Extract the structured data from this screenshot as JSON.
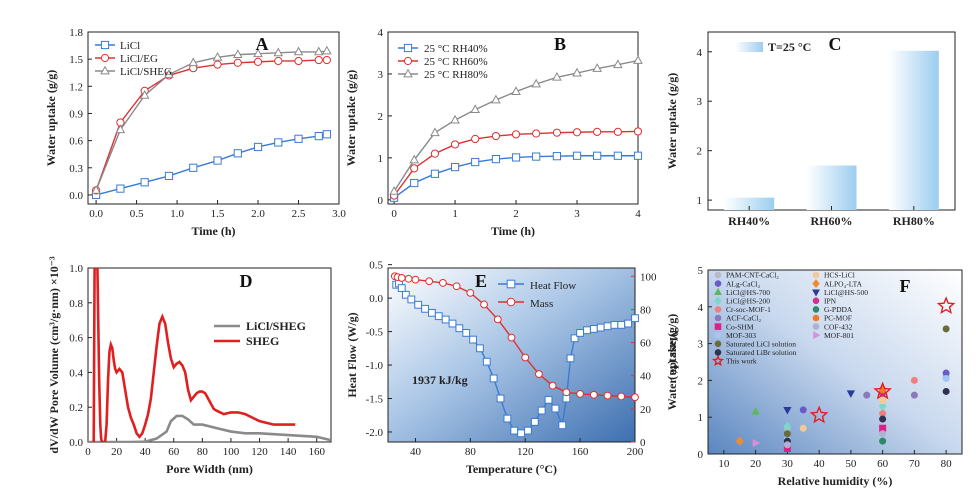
{
  "chart_data": [
    {
      "panel": "A",
      "type": "line",
      "xlabel": "Time (h)",
      "ylabel": "Water uptake (g/g)",
      "xlim": [
        -0.1,
        3.0
      ],
      "ylim": [
        -0.1,
        1.8
      ],
      "xticks": [
        0,
        0.5,
        1,
        1.5,
        2,
        2.5,
        3
      ],
      "yticks": [
        0,
        0.3,
        0.6,
        0.9,
        1.2,
        1.5,
        1.8
      ],
      "xtick_labels": [
        "0.0",
        "0.5",
        "1.0",
        "1.5",
        "2.0",
        "2.5",
        "3.0"
      ],
      "ytick_labels": [
        "0.0",
        "0.3",
        "0.6",
        "0.9",
        "1.2",
        "1.5",
        "1.8"
      ],
      "legend_position": "top-left",
      "series": [
        {
          "name": "LiCl",
          "color": "#3a7bd5",
          "marker": "square",
          "x": [
            0,
            0.3,
            0.6,
            0.9,
            1.2,
            1.5,
            1.75,
            2.0,
            2.25,
            2.5,
            2.75,
            2.85
          ],
          "y": [
            0.0,
            0.07,
            0.14,
            0.21,
            0.3,
            0.38,
            0.46,
            0.53,
            0.58,
            0.62,
            0.65,
            0.67
          ]
        },
        {
          "name": "LiCl/EG",
          "color": "#e03030",
          "marker": "circle",
          "x": [
            0,
            0.3,
            0.6,
            0.9,
            1.2,
            1.5,
            1.75,
            2.0,
            2.25,
            2.5,
            2.75,
            2.85
          ],
          "y": [
            0.05,
            0.8,
            1.15,
            1.32,
            1.4,
            1.44,
            1.46,
            1.47,
            1.48,
            1.48,
            1.49,
            1.49
          ]
        },
        {
          "name": "LiCl/SHEG",
          "color": "#8a8a8a",
          "marker": "triangle",
          "x": [
            0,
            0.3,
            0.6,
            0.9,
            1.2,
            1.5,
            1.75,
            2.0,
            2.25,
            2.5,
            2.75,
            2.85
          ],
          "y": [
            0.05,
            0.72,
            1.1,
            1.33,
            1.46,
            1.52,
            1.55,
            1.56,
            1.57,
            1.58,
            1.58,
            1.59
          ]
        }
      ]
    },
    {
      "panel": "B",
      "type": "line",
      "xlabel": "Time (h)",
      "ylabel": "Water uptake (g/g)",
      "xlim": [
        -0.1,
        4.0
      ],
      "ylim": [
        -0.1,
        4.0
      ],
      "xticks": [
        0,
        1,
        2,
        3,
        4
      ],
      "yticks": [
        0,
        1,
        2,
        3,
        4
      ],
      "xtick_labels": [
        "0",
        "1",
        "2",
        "3",
        "4"
      ],
      "ytick_labels": [
        "0",
        "1",
        "2",
        "3",
        "4"
      ],
      "legend_position": "top-left",
      "series": [
        {
          "name": "25 °C RH40%",
          "color": "#3a7bd5",
          "marker": "square",
          "x": [
            0,
            0.33,
            0.67,
            1.0,
            1.33,
            1.67,
            2.0,
            2.33,
            2.67,
            3.0,
            3.33,
            3.67,
            4.0
          ],
          "y": [
            0.05,
            0.4,
            0.62,
            0.78,
            0.9,
            0.97,
            1.01,
            1.03,
            1.04,
            1.05,
            1.05,
            1.05,
            1.05
          ]
        },
        {
          "name": "25 °C RH60%",
          "color": "#e03030",
          "marker": "circle",
          "x": [
            0,
            0.33,
            0.67,
            1.0,
            1.33,
            1.67,
            2.0,
            2.33,
            2.67,
            3.0,
            3.33,
            3.67,
            4.0
          ],
          "y": [
            0.1,
            0.75,
            1.1,
            1.32,
            1.45,
            1.52,
            1.56,
            1.58,
            1.6,
            1.61,
            1.62,
            1.62,
            1.63
          ]
        },
        {
          "name": "25 °C RH80%",
          "color": "#8a8a8a",
          "marker": "triangle",
          "x": [
            0,
            0.33,
            0.67,
            1.0,
            1.33,
            1.67,
            2.0,
            2.33,
            2.67,
            3.0,
            3.33,
            3.67,
            4.0
          ],
          "y": [
            0.2,
            0.95,
            1.6,
            1.9,
            2.15,
            2.38,
            2.58,
            2.76,
            2.92,
            3.02,
            3.13,
            3.22,
            3.32
          ]
        }
      ]
    },
    {
      "panel": "C",
      "type": "bar",
      "ylabel": "Water uptake (g/g)",
      "categories": [
        "RH40%",
        "RH60%",
        "RH80%"
      ],
      "values": [
        1.05,
        1.7,
        4.02
      ],
      "ylim": [
        0.8,
        4.4
      ],
      "yticks": [
        1,
        2,
        3,
        4
      ],
      "ytick_labels": [
        "1",
        "2",
        "3",
        "4"
      ],
      "legend": "T=25 °C",
      "bar_color": "#9ccdf0"
    },
    {
      "panel": "D",
      "type": "line",
      "xlabel": "Pore Width (nm)",
      "ylabel": "dV/dW Pore Volume (cm³/g·nm) ×10⁻³",
      "xlim": [
        0,
        170
      ],
      "ylim": [
        0,
        1.0
      ],
      "xticks": [
        0,
        20,
        40,
        60,
        80,
        100,
        120,
        140,
        160
      ],
      "yticks": [
        0,
        0.2,
        0.4,
        0.6,
        0.8,
        1.0
      ],
      "xtick_labels": [
        "0",
        "20",
        "40",
        "60",
        "80",
        "100",
        "120",
        "140",
        "160"
      ],
      "ytick_labels": [
        "0.0",
        "0.2",
        "0.4",
        "0.6",
        "0.8",
        "1.0"
      ],
      "legend_position": "right",
      "series": [
        {
          "name": "LiCl/SHEG",
          "color": "#8a8a8a",
          "x": [
            0,
            30,
            40,
            48,
            55,
            58,
            62,
            66,
            70,
            74,
            80,
            90,
            100,
            110,
            120,
            130,
            140,
            150,
            160,
            170
          ],
          "y": [
            0,
            0,
            0.002,
            0.02,
            0.06,
            0.12,
            0.15,
            0.15,
            0.13,
            0.1,
            0.1,
            0.08,
            0.06,
            0.05,
            0.05,
            0.045,
            0.04,
            0.035,
            0.03,
            0.01
          ]
        },
        {
          "name": "SHEG",
          "color": "#e02020",
          "x": [
            4,
            4.6,
            5.2,
            5.8,
            6.6,
            7.8,
            8.6,
            9.2,
            9.8,
            11,
            12,
            13,
            14,
            15,
            16,
            17,
            18,
            19,
            20,
            22,
            24,
            26,
            28,
            30,
            32,
            34,
            36,
            38,
            40,
            42,
            44,
            46,
            48,
            50,
            52,
            54,
            56,
            58,
            60,
            62,
            64,
            66,
            68,
            70,
            72,
            74,
            76,
            78,
            80,
            82,
            84,
            86,
            88,
            90,
            95,
            100,
            105,
            110,
            115,
            120,
            125,
            130,
            135,
            140,
            145
          ],
          "y": [
            0,
            1.0,
            1.0,
            1.0,
            1.0,
            0.36,
            0.1,
            0.02,
            0,
            0,
            0,
            0.1,
            0.35,
            0.52,
            0.56,
            0.54,
            0.47,
            0.42,
            0.4,
            0.42,
            0.4,
            0.3,
            0.2,
            0.14,
            0.1,
            0.05,
            0.03,
            0.05,
            0.1,
            0.16,
            0.25,
            0.4,
            0.55,
            0.68,
            0.72,
            0.68,
            0.57,
            0.48,
            0.43,
            0.45,
            0.46,
            0.44,
            0.4,
            0.3,
            0.24,
            0.26,
            0.28,
            0.29,
            0.29,
            0.28,
            0.25,
            0.22,
            0.19,
            0.18,
            0.16,
            0.17,
            0.17,
            0.16,
            0.14,
            0.12,
            0.11,
            0.1,
            0.1,
            0.1,
            0.1
          ]
        }
      ]
    },
    {
      "panel": "E",
      "type": "line",
      "xlabel": "Temperature (°C)",
      "ylabel": "Heat Flow (W/g)",
      "ylabel_right": "Mass (%)",
      "xlim": [
        20,
        200
      ],
      "ylim": [
        -2.15,
        0.45
      ],
      "ylim_right": [
        0,
        105
      ],
      "xticks": [
        40,
        80,
        120,
        160,
        200
      ],
      "yticks": [
        0.5,
        0.0,
        -0.5,
        -1.0,
        -1.5,
        -2.0
      ],
      "yticks_right": [
        0,
        20,
        40,
        60,
        80,
        100
      ],
      "xtick_labels": [
        "40",
        "80",
        "120",
        "160",
        "200"
      ],
      "ytick_labels": [
        "0.5",
        "0.0",
        "-0.5",
        "-1.0",
        "-1.5",
        "-2.0"
      ],
      "ytick_labels_right": [
        "0",
        "20",
        "40",
        "60",
        "80",
        "100"
      ],
      "annotation": "1937 kJ/kg",
      "legend_position": "top-right",
      "series": [
        {
          "name": "Heat Flow",
          "color": "#3a7bd5",
          "marker": "square",
          "axis": "left",
          "x": [
            26,
            28,
            30,
            33,
            37,
            42,
            47,
            52,
            57,
            62,
            67,
            72,
            77,
            82,
            87,
            92,
            97,
            102,
            107,
            112,
            117,
            122,
            127,
            132,
            137,
            142,
            147,
            150,
            153,
            156,
            160,
            165,
            170,
            175,
            180,
            185,
            190,
            195,
            200
          ],
          "y": [
            0.2,
            0.22,
            0.15,
            0.05,
            -0.02,
            -0.1,
            -0.16,
            -0.22,
            -0.27,
            -0.32,
            -0.38,
            -0.45,
            -0.52,
            -0.62,
            -0.75,
            -0.95,
            -1.2,
            -1.5,
            -1.8,
            -1.98,
            -2.02,
            -1.98,
            -1.85,
            -1.68,
            -1.52,
            -1.65,
            -1.9,
            -1.5,
            -0.9,
            -0.6,
            -0.52,
            -0.48,
            -0.46,
            -0.44,
            -0.42,
            -0.4,
            -0.4,
            -0.38,
            -0.3
          ]
        },
        {
          "name": "Mass",
          "color": "#e03030",
          "marker": "circle",
          "axis": "right",
          "x": [
            25,
            27,
            30,
            35,
            40,
            50,
            60,
            70,
            80,
            90,
            100,
            110,
            120,
            130,
            140,
            150,
            160,
            170,
            180,
            190,
            200
          ],
          "y": [
            100,
            99.5,
            99,
            98.5,
            98,
            97,
            96,
            94,
            90,
            83,
            74,
            63,
            51,
            41,
            34,
            30,
            29,
            28.5,
            28,
            27.5,
            27
          ]
        }
      ]
    },
    {
      "panel": "F",
      "type": "scatter",
      "xlabel": "Relative humidity (%)",
      "ylabel": "Water uptake (g/g)",
      "xlim": [
        5,
        85
      ],
      "ylim": [
        0,
        5
      ],
      "xticks": [
        10,
        20,
        30,
        40,
        50,
        60,
        70,
        80
      ],
      "yticks": [
        0,
        1,
        2,
        3,
        4,
        5
      ],
      "xtick_labels": [
        "10",
        "20",
        "30",
        "40",
        "50",
        "60",
        "70",
        "80"
      ],
      "ytick_labels": [
        "0",
        "1",
        "2",
        "3",
        "4",
        "5"
      ],
      "legend_position": "top-left",
      "series": [
        {
          "name": "PAM-CNT-CaCl₂",
          "color": "#b8b8c8",
          "marker": "circle",
          "x": [
            30,
            60,
            80
          ],
          "y": [
            0.7,
            1.65,
            2.1
          ]
        },
        {
          "name": "ALg-CaCl₂",
          "color": "#6a5ac8",
          "marker": "circle",
          "x": [
            35,
            60,
            80
          ],
          "y": [
            1.2,
            1.7,
            2.2
          ]
        },
        {
          "name": "LiCl@HS-700",
          "color": "#5cb85c",
          "marker": "triangle",
          "x": [
            20,
            60
          ],
          "y": [
            1.15,
            1.75
          ]
        },
        {
          "name": "LiCl@HS-200",
          "color": "#7ad8c8",
          "marker": "diamond",
          "x": [
            30,
            60
          ],
          "y": [
            0.75,
            1.3
          ]
        },
        {
          "name": "Cr-soc-MOF-1",
          "color": "#f08080",
          "marker": "circle",
          "x": [
            70,
            60
          ],
          "y": [
            2.0,
            1.1
          ]
        },
        {
          "name": "ACF-CaCl₂",
          "color": "#8a7ab8",
          "marker": "circle",
          "x": [
            55,
            70
          ],
          "y": [
            1.6,
            1.6
          ]
        },
        {
          "name": "Co-SHM",
          "color": "#e0208a",
          "marker": "square",
          "x": [
            30,
            60
          ],
          "y": [
            0.15,
            0.7
          ]
        },
        {
          "name": "MOF-303",
          "color": "#a0c8f0",
          "marker": "circle",
          "x": [
            30,
            80
          ],
          "y": [
            0.4,
            2.05
          ]
        },
        {
          "name": "Saturated LiCl solution",
          "color": "#6b6b3a",
          "marker": "circle",
          "x": [
            30,
            80
          ],
          "y": [
            0.55,
            3.4
          ]
        },
        {
          "name": "Saturated LiBr solution",
          "color": "#303050",
          "marker": "circle",
          "x": [
            30,
            60,
            80
          ],
          "y": [
            0.35,
            0.95,
            1.7
          ]
        },
        {
          "name": "HCS-LiCl",
          "color": "#f5c89a",
          "marker": "circle",
          "x": [
            35,
            60
          ],
          "y": [
            0.7,
            1.45
          ]
        },
        {
          "name": "ALPO₄-LTA",
          "color": "#f08a30",
          "marker": "diamond",
          "x": [
            15
          ],
          "y": [
            0.35
          ]
        },
        {
          "name": "LiCl@HS-500",
          "color": "#2a3a9a",
          "marker": "triangle-down",
          "x": [
            30,
            50
          ],
          "y": [
            1.2,
            1.65
          ]
        },
        {
          "name": "IPN",
          "color": "#d03090",
          "marker": "circle",
          "x": [
            60
          ],
          "y": [
            1.65
          ]
        },
        {
          "name": "G-PDDA",
          "color": "#2a8a6a",
          "marker": "circle",
          "x": [
            60
          ],
          "y": [
            0.35
          ]
        },
        {
          "name": "PC-MOF",
          "color": "#f07a20",
          "marker": "circle",
          "x": [
            60
          ],
          "y": [
            1.75
          ]
        },
        {
          "name": "COF-432",
          "color": "#b0b0d0",
          "marker": "circle",
          "x": [
            30,
            60
          ],
          "y": [
            0.25,
            0.55
          ]
        },
        {
          "name": "MOF-801",
          "color": "#d890d8",
          "marker": "triangle-right",
          "x": [
            20
          ],
          "y": [
            0.3
          ]
        },
        {
          "name": "This work",
          "color": "#e02020",
          "marker": "star",
          "x": [
            40,
            60,
            80
          ],
          "y": [
            1.05,
            1.7,
            4.02
          ]
        }
      ]
    }
  ],
  "panel_letters": [
    "A",
    "B",
    "C",
    "D",
    "E",
    "F"
  ]
}
